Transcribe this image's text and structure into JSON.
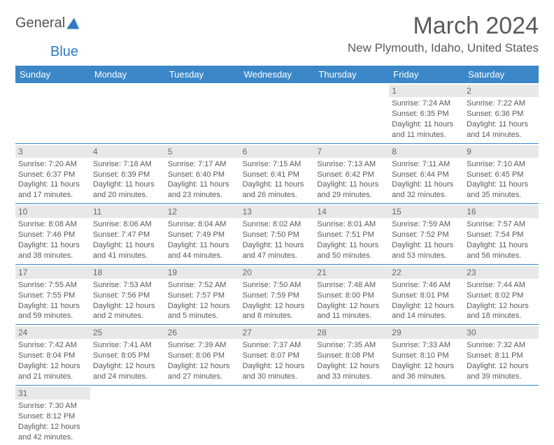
{
  "logo": {
    "text1": "General",
    "text2": "Blue"
  },
  "title": "March 2024",
  "location": "New Plymouth, Idaho, United States",
  "colors": {
    "header_bg": "#3b87c8",
    "header_fg": "#ffffff",
    "daynum_bg": "#e8e8e8",
    "text": "#5a5a5a",
    "rule": "#3b87c8"
  },
  "dayNames": [
    "Sunday",
    "Monday",
    "Tuesday",
    "Wednesday",
    "Thursday",
    "Friday",
    "Saturday"
  ],
  "weeks": [
    [
      null,
      null,
      null,
      null,
      null,
      {
        "n": "1",
        "sr": "7:24 AM",
        "ss": "6:35 PM",
        "dl": "11 hours and 11 minutes."
      },
      {
        "n": "2",
        "sr": "7:22 AM",
        "ss": "6:36 PM",
        "dl": "11 hours and 14 minutes."
      }
    ],
    [
      {
        "n": "3",
        "sr": "7:20 AM",
        "ss": "6:37 PM",
        "dl": "11 hours and 17 minutes."
      },
      {
        "n": "4",
        "sr": "7:18 AM",
        "ss": "6:39 PM",
        "dl": "11 hours and 20 minutes."
      },
      {
        "n": "5",
        "sr": "7:17 AM",
        "ss": "6:40 PM",
        "dl": "11 hours and 23 minutes."
      },
      {
        "n": "6",
        "sr": "7:15 AM",
        "ss": "6:41 PM",
        "dl": "11 hours and 26 minutes."
      },
      {
        "n": "7",
        "sr": "7:13 AM",
        "ss": "6:42 PM",
        "dl": "11 hours and 29 minutes."
      },
      {
        "n": "8",
        "sr": "7:11 AM",
        "ss": "6:44 PM",
        "dl": "11 hours and 32 minutes."
      },
      {
        "n": "9",
        "sr": "7:10 AM",
        "ss": "6:45 PM",
        "dl": "11 hours and 35 minutes."
      }
    ],
    [
      {
        "n": "10",
        "sr": "8:08 AM",
        "ss": "7:46 PM",
        "dl": "11 hours and 38 minutes."
      },
      {
        "n": "11",
        "sr": "8:06 AM",
        "ss": "7:47 PM",
        "dl": "11 hours and 41 minutes."
      },
      {
        "n": "12",
        "sr": "8:04 AM",
        "ss": "7:49 PM",
        "dl": "11 hours and 44 minutes."
      },
      {
        "n": "13",
        "sr": "8:02 AM",
        "ss": "7:50 PM",
        "dl": "11 hours and 47 minutes."
      },
      {
        "n": "14",
        "sr": "8:01 AM",
        "ss": "7:51 PM",
        "dl": "11 hours and 50 minutes."
      },
      {
        "n": "15",
        "sr": "7:59 AM",
        "ss": "7:52 PM",
        "dl": "11 hours and 53 minutes."
      },
      {
        "n": "16",
        "sr": "7:57 AM",
        "ss": "7:54 PM",
        "dl": "11 hours and 56 minutes."
      }
    ],
    [
      {
        "n": "17",
        "sr": "7:55 AM",
        "ss": "7:55 PM",
        "dl": "11 hours and 59 minutes."
      },
      {
        "n": "18",
        "sr": "7:53 AM",
        "ss": "7:56 PM",
        "dl": "12 hours and 2 minutes."
      },
      {
        "n": "19",
        "sr": "7:52 AM",
        "ss": "7:57 PM",
        "dl": "12 hours and 5 minutes."
      },
      {
        "n": "20",
        "sr": "7:50 AM",
        "ss": "7:59 PM",
        "dl": "12 hours and 8 minutes."
      },
      {
        "n": "21",
        "sr": "7:48 AM",
        "ss": "8:00 PM",
        "dl": "12 hours and 11 minutes."
      },
      {
        "n": "22",
        "sr": "7:46 AM",
        "ss": "8:01 PM",
        "dl": "12 hours and 14 minutes."
      },
      {
        "n": "23",
        "sr": "7:44 AM",
        "ss": "8:02 PM",
        "dl": "12 hours and 18 minutes."
      }
    ],
    [
      {
        "n": "24",
        "sr": "7:42 AM",
        "ss": "8:04 PM",
        "dl": "12 hours and 21 minutes."
      },
      {
        "n": "25",
        "sr": "7:41 AM",
        "ss": "8:05 PM",
        "dl": "12 hours and 24 minutes."
      },
      {
        "n": "26",
        "sr": "7:39 AM",
        "ss": "8:06 PM",
        "dl": "12 hours and 27 minutes."
      },
      {
        "n": "27",
        "sr": "7:37 AM",
        "ss": "8:07 PM",
        "dl": "12 hours and 30 minutes."
      },
      {
        "n": "28",
        "sr": "7:35 AM",
        "ss": "8:08 PM",
        "dl": "12 hours and 33 minutes."
      },
      {
        "n": "29",
        "sr": "7:33 AM",
        "ss": "8:10 PM",
        "dl": "12 hours and 36 minutes."
      },
      {
        "n": "30",
        "sr": "7:32 AM",
        "ss": "8:11 PM",
        "dl": "12 hours and 39 minutes."
      }
    ],
    [
      {
        "n": "31",
        "sr": "7:30 AM",
        "ss": "8:12 PM",
        "dl": "12 hours and 42 minutes."
      },
      null,
      null,
      null,
      null,
      null,
      null
    ]
  ],
  "labels": {
    "sunrise": "Sunrise:",
    "sunset": "Sunset:",
    "daylight": "Daylight:"
  }
}
